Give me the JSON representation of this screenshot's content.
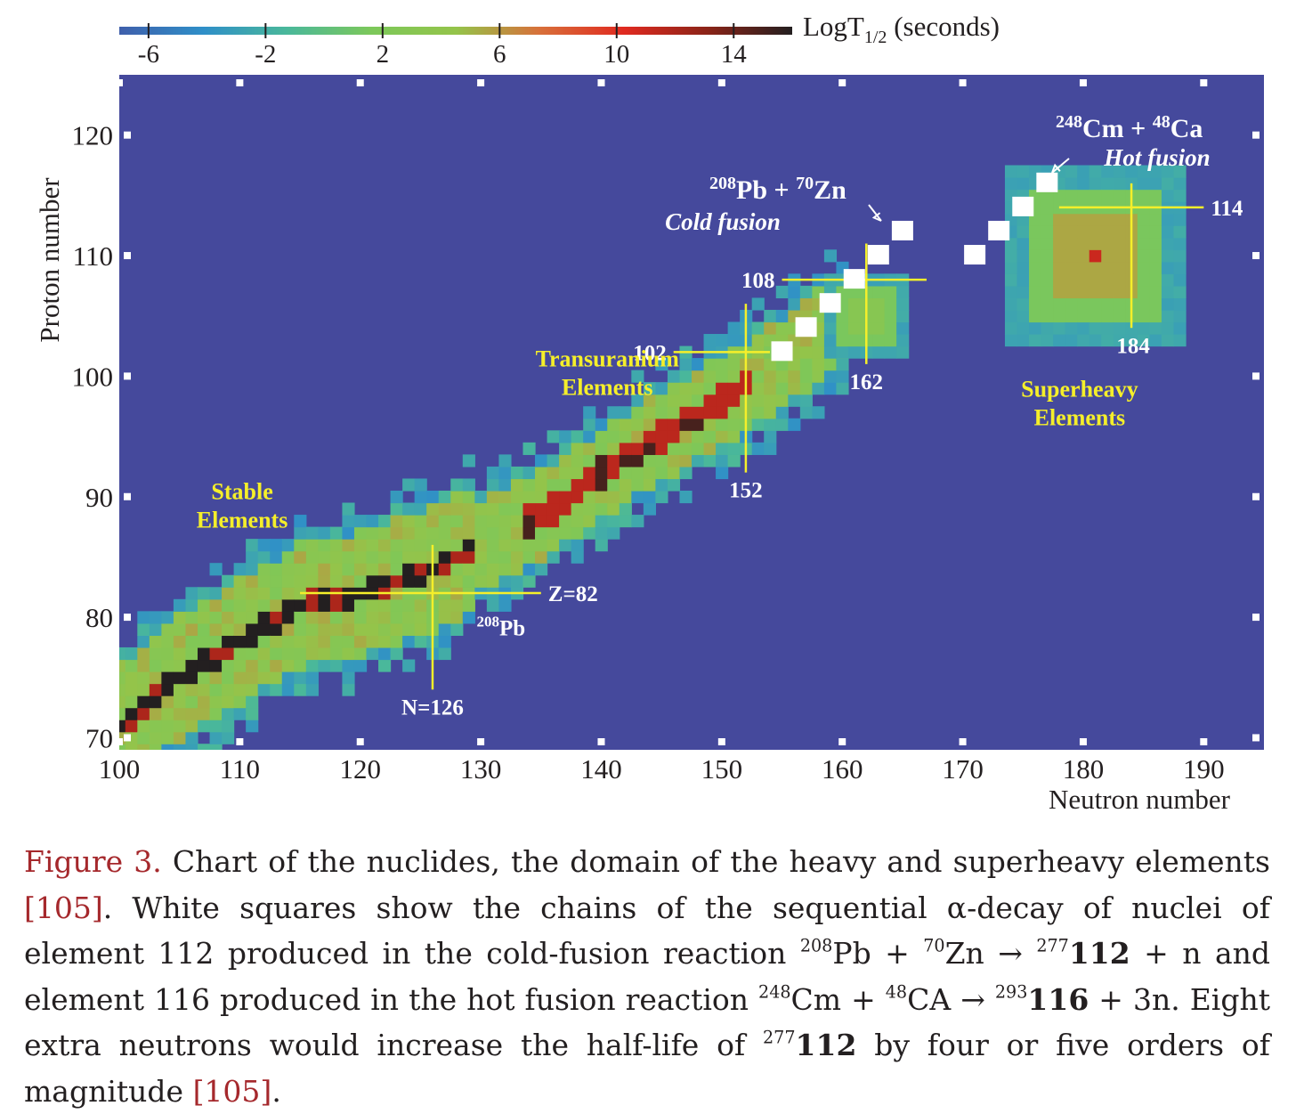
{
  "chart_data": {
    "type": "heatmap",
    "title": "",
    "xlabel": "Neutron number",
    "ylabel": "Proton number",
    "xlim": [
      100,
      195
    ],
    "ylim": [
      69,
      125
    ],
    "xticks": [
      "100",
      "110",
      "120",
      "130",
      "140",
      "150",
      "160",
      "170",
      "180",
      "190"
    ],
    "yticks": [
      "70",
      "80",
      "90",
      "100",
      "110",
      "120"
    ],
    "colorbar": {
      "label_main": "LogT",
      "label_sub": "1/2",
      "label_unit": " (seconds)",
      "range": [
        -7,
        16
      ],
      "ticks": [
        "-6",
        "-2",
        "2",
        "6",
        "10",
        "14"
      ],
      "colors": [
        "#3f5fab",
        "#2f8fc8",
        "#4ab89a",
        "#7cc85a",
        "#94c44a",
        "#d8703a",
        "#e02a20",
        "#8a2418",
        "#231f20"
      ]
    },
    "background_color": "#45499c",
    "stability_ridge": [
      [
        100,
        71
      ],
      [
        105,
        75
      ],
      [
        110,
        78
      ],
      [
        115,
        81
      ],
      [
        120,
        82
      ],
      [
        126,
        84
      ],
      [
        132,
        87
      ],
      [
        136,
        89
      ],
      [
        140,
        92
      ],
      [
        145,
        95
      ],
      [
        150,
        98
      ],
      [
        155,
        101
      ],
      [
        160,
        105
      ],
      [
        170,
        110
      ],
      [
        180,
        113
      ],
      [
        190,
        117
      ]
    ],
    "half_life_islands": [
      {
        "n": 181,
        "z": 110,
        "log_t": 11
      },
      {
        "n": 162,
        "z": 105,
        "log_t": 3
      }
    ],
    "decay_chain_cold": {
      "label": "Cold fusion",
      "reaction_a": "208",
      "reaction_a_el": "Pb + ",
      "reaction_b": "70",
      "reaction_b_el": "Zn",
      "points": [
        [
          165,
          112
        ],
        [
          163,
          110
        ],
        [
          161,
          108
        ],
        [
          159,
          106
        ],
        [
          157,
          104
        ],
        [
          155,
          102
        ]
      ]
    },
    "decay_chain_hot": {
      "label": "Hot fusion",
      "reaction_a": "248",
      "reaction_a_el": "Cm + ",
      "reaction_b": "48",
      "reaction_b_el": "Ca",
      "points": [
        [
          177,
          116
        ],
        [
          175,
          114
        ],
        [
          173,
          112
        ],
        [
          171,
          110
        ]
      ]
    },
    "magic_lines": [
      {
        "label": "Z=82",
        "orientation": "h",
        "value": 82,
        "from": 115,
        "to": 135
      },
      {
        "label": "N=126",
        "orientation": "v",
        "value": 126,
        "from": 74,
        "to": 86
      },
      {
        "label": "102",
        "orientation": "h",
        "value": 102,
        "from": 146,
        "to": 154
      },
      {
        "label": "152",
        "orientation": "v",
        "value": 152,
        "from": 92,
        "to": 106
      },
      {
        "label": "108",
        "orientation": "h",
        "value": 108,
        "from": 155,
        "to": 167
      },
      {
        "label": "162",
        "orientation": "v",
        "value": 162,
        "from": 101,
        "to": 111
      },
      {
        "label": "114",
        "orientation": "h",
        "value": 114,
        "from": 178,
        "to": 190
      },
      {
        "label": "184",
        "orientation": "v",
        "value": 184,
        "from": 104,
        "to": 116
      }
    ],
    "region_labels": [
      {
        "lines": [
          "Stable",
          "Elements"
        ],
        "n": 110.2,
        "z": 89.8
      },
      {
        "lines": [
          "Transuranium",
          "Elements"
        ],
        "n": 140.5,
        "z": 100.8
      },
      {
        "lines": [
          "Superheavy",
          "Elements"
        ],
        "n": 179.7,
        "z": 98.3
      }
    ],
    "isotope_label": {
      "mass": "208",
      "element": "Pb",
      "n": 130.4,
      "z": 78.5
    }
  },
  "caption": {
    "figure_label": "Figure 3.",
    "part1": " Chart of the nuclides, the domain of the heavy and superheavy elements ",
    "ref1": "[105]",
    "part2": ". White squares show the chains of the sequential α-decay of nuclei of element 112 produced in the cold-fusion reaction ",
    "r1_a": "208",
    "r1_a_el": "Pb + ",
    "r1_b": "70",
    "r1_b_el": "Zn → ",
    "r1_p": "277",
    "r1_p_num": "112",
    "part3": " + n and element 116 produced in the hot fusion reaction ",
    "r2_a": "248",
    "r2_a_el": "Cm + ",
    "r2_b": "48",
    "r2_b_el": "CA → ",
    "r2_p": "293",
    "r2_p_num": "116",
    "part4": " + 3n. Eight extra neutrons would increase the half-life of ",
    "r3_p": "277",
    "r3_p_num": "112",
    "part5": " by four or five orders of magnitude ",
    "ref2": "[105]",
    "part6": "."
  }
}
